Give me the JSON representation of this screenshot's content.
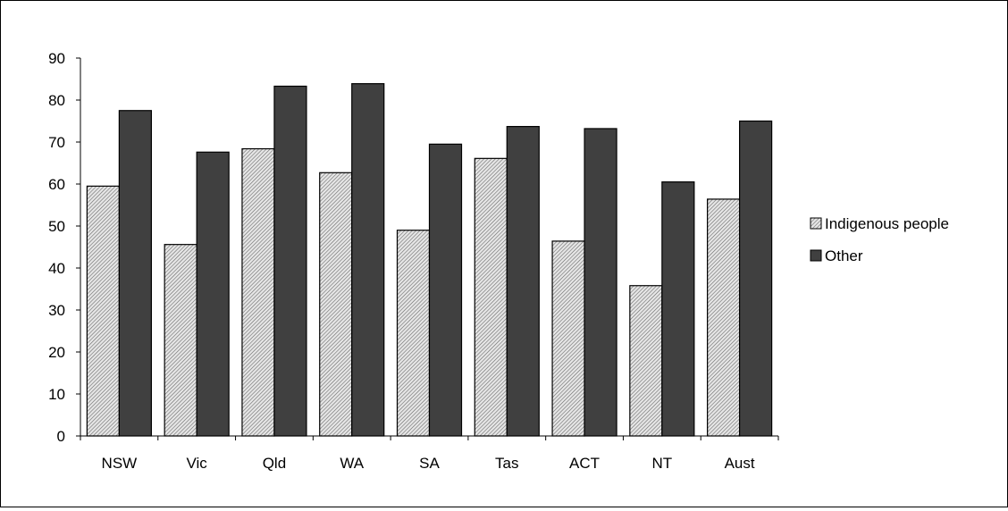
{
  "chart_data": {
    "type": "bar",
    "title": "",
    "xlabel": "",
    "ylabel": "",
    "ylim": [
      0,
      90
    ],
    "yticks": [
      0,
      10,
      20,
      30,
      40,
      50,
      60,
      70,
      80,
      90
    ],
    "grid": false,
    "legend_position": "right",
    "categories": [
      "NSW",
      "Vic",
      "Qld",
      "WA",
      "SA",
      "Tas",
      "ACT",
      "NT",
      "Aust"
    ],
    "series": [
      {
        "name": "Indigenous people",
        "fill": "hatched-light",
        "color": "#d9d9d9",
        "values": [
          59.5,
          45.6,
          68.4,
          62.7,
          49.0,
          66.1,
          46.4,
          35.8,
          56.4
        ]
      },
      {
        "name": "Other",
        "fill": "solid-dark",
        "color": "#404040",
        "values": [
          77.5,
          67.6,
          83.3,
          83.9,
          69.5,
          73.7,
          73.2,
          60.5,
          75.0
        ]
      }
    ]
  }
}
